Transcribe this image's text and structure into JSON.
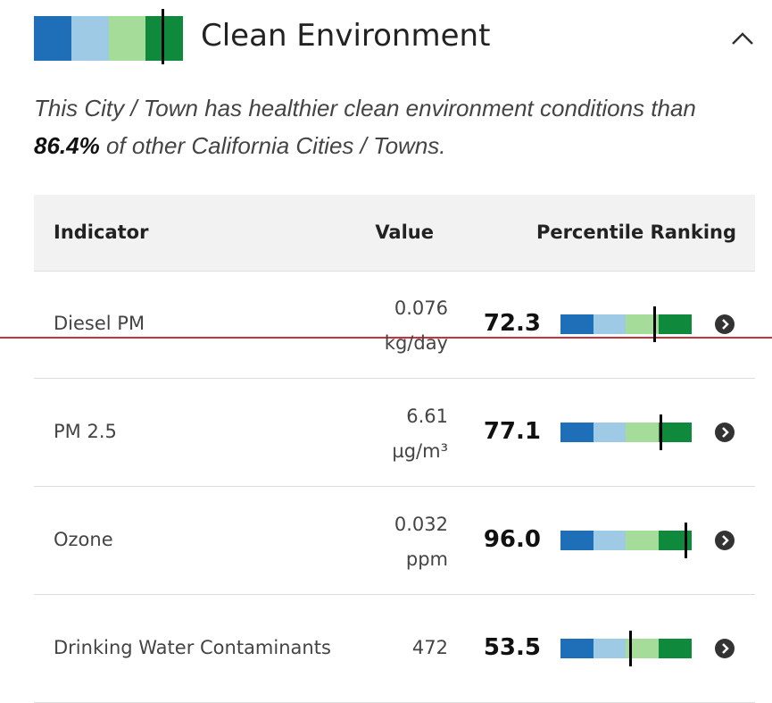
{
  "header": {
    "title": "Clean Environment",
    "percentile": 86.4
  },
  "summary": {
    "text_before": "This City / Town has healthier clean environment conditions than ",
    "highlight": "86.4%",
    "text_after": " of other California Cities / Towns."
  },
  "table": {
    "columns": [
      "Indicator",
      "Value",
      "Percentile Ranking"
    ],
    "rows": [
      {
        "indicator": "Diesel PM",
        "value": "0.076",
        "unit": "kg/day",
        "percentile": 72.3,
        "percentile_label": "72.3"
      },
      {
        "indicator": "PM 2.5",
        "value": "6.61",
        "unit": "µg/m³",
        "percentile": 77.1,
        "percentile_label": "77.1"
      },
      {
        "indicator": "Ozone",
        "value": "0.032",
        "unit": "ppm",
        "percentile": 96,
        "percentile_label": "96.0"
      },
      {
        "indicator": "Drinking Water Contaminants",
        "value": "472",
        "percentile": 53.5,
        "percentile_label": "53.5"
      }
    ]
  }
}
